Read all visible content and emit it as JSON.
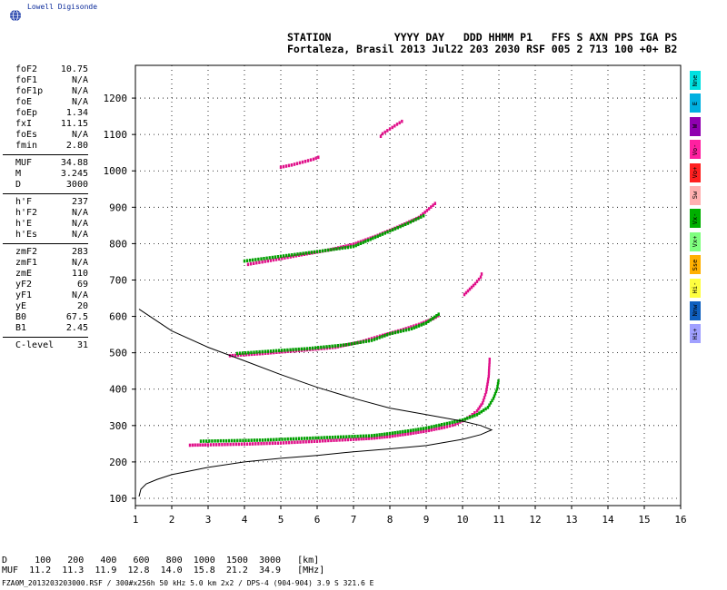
{
  "logo_text": "Lowell Digisonde",
  "header": {
    "line1": "STATION          YYYY DAY   DDD HHMM P1   FFS S AXN PPS IGA PS",
    "line2": "Fortaleza, Brasil 2013 Jul22 203 2030 RSF 005 2 713 100 +0+ B2"
  },
  "params": [
    [
      {
        "name": "foF2",
        "value": "10.75"
      },
      {
        "name": "foF1",
        "value": "N/A"
      },
      {
        "name": "foF1p",
        "value": "N/A"
      },
      {
        "name": "foE",
        "value": "N/A"
      },
      {
        "name": "foEp",
        "value": "1.34"
      },
      {
        "name": "fxI",
        "value": "11.15"
      },
      {
        "name": "foEs",
        "value": "N/A"
      },
      {
        "name": "fmin",
        "value": "2.80"
      }
    ],
    [
      {
        "name": "MUF",
        "value": "34.88"
      },
      {
        "name": "M",
        "value": "3.245"
      },
      {
        "name": "D",
        "value": "3000"
      }
    ],
    [
      {
        "name": "h'F",
        "value": "237"
      },
      {
        "name": "h'F2",
        "value": "N/A"
      },
      {
        "name": "h'E",
        "value": "N/A"
      },
      {
        "name": "h'Es",
        "value": "N/A"
      }
    ],
    [
      {
        "name": "zmF2",
        "value": "283"
      },
      {
        "name": "zmF1",
        "value": "N/A"
      },
      {
        "name": "zmE",
        "value": "110"
      },
      {
        "name": "yF2",
        "value": "69"
      },
      {
        "name": "yF1",
        "value": "N/A"
      },
      {
        "name": "yE",
        "value": "20"
      },
      {
        "name": "B0",
        "value": "67.5"
      },
      {
        "name": "B1",
        "value": "2.45"
      }
    ],
    [
      {
        "name": "C-level",
        "value": "31"
      }
    ]
  ],
  "legend": [
    {
      "label": "Nne",
      "color": "#00e0e0"
    },
    {
      "label": "E",
      "color": "#00b0e0"
    },
    {
      "label": "W",
      "color": "#9000b0"
    },
    {
      "label": "Vo-",
      "color": "#ff20a0"
    },
    {
      "label": "Vo+",
      "color": "#ff2020"
    },
    {
      "label": "Sw",
      "color": "#ffb0b0"
    },
    {
      "label": "Vx-",
      "color": "#00b000"
    },
    {
      "label": "Vx+",
      "color": "#80ff80"
    },
    {
      "label": "Sse",
      "color": "#ffb000"
    },
    {
      "label": "Hi-",
      "color": "#ffff40"
    },
    {
      "label": "Nnw",
      "color": "#1060c0"
    },
    {
      "label": "Hi+",
      "color": "#a0a0ff"
    }
  ],
  "footer": {
    "d_line": "D     100   200   400   600   800  1000  1500  3000   [km]",
    "muf_line": "MUF  11.2  11.3  11.9  12.8  14.0  15.8  21.2  34.9   [MHz]",
    "file_line": "FZA0M_2013203203000.RSF / 300#x256h 50 kHz 5.0 km 2x2 / DPS-4 (904-904)   3.9 S 321.6 E"
  },
  "chart_data": {
    "type": "scatter",
    "xlim": [
      1,
      16
    ],
    "ylim": [
      80,
      1290
    ],
    "xticks": [
      "1",
      "2",
      "3",
      "4",
      "5",
      "6",
      "7",
      "8",
      "9",
      "10",
      "11",
      "12",
      "13",
      "14",
      "15",
      "16"
    ],
    "yticks": [
      "100",
      "200",
      "300",
      "400",
      "500",
      "600",
      "700",
      "800",
      "900",
      "1000",
      "1100",
      "1200"
    ],
    "grid": true,
    "profile_curve": [
      [
        1.1,
        105
      ],
      [
        1.15,
        125
      ],
      [
        1.3,
        140
      ],
      [
        1.6,
        152
      ],
      [
        2.0,
        165
      ],
      [
        3.0,
        185
      ],
      [
        4.0,
        200
      ],
      [
        5.0,
        210
      ],
      [
        6.0,
        218
      ],
      [
        7.0,
        228
      ],
      [
        8.0,
        236
      ],
      [
        9.0,
        245
      ],
      [
        10.0,
        262
      ],
      [
        10.5,
        275
      ],
      [
        10.8,
        288
      ],
      [
        10.5,
        300
      ],
      [
        10.0,
        312
      ],
      [
        9.0,
        330
      ],
      [
        8.0,
        348
      ],
      [
        7.0,
        375
      ],
      [
        6.0,
        405
      ],
      [
        5.0,
        440
      ],
      [
        4.0,
        478
      ],
      [
        3.0,
        515
      ],
      [
        2.0,
        560
      ],
      [
        1.4,
        600
      ],
      [
        1.1,
        620
      ]
    ],
    "traces": [
      {
        "name": "O",
        "color": "#e0108a",
        "x": [
          2.5,
          3.0,
          4.0,
          5.0,
          6.0,
          7.0,
          7.5,
          8.0,
          8.5,
          9.0,
          9.5,
          9.8,
          10.0,
          10.2,
          10.4,
          10.55,
          10.65,
          10.72,
          10.75
        ],
        "y": [
          246,
          247,
          249,
          252,
          257,
          262,
          265,
          270,
          277,
          285,
          295,
          303,
          313,
          325,
          340,
          362,
          392,
          435,
          490
        ]
      },
      {
        "name": "X",
        "color": "#00a000",
        "x": [
          2.8,
          3.5,
          4.5,
          5.5,
          6.5,
          7.5,
          8.0,
          8.5,
          9.0,
          9.5,
          10.0,
          10.4,
          10.7,
          10.85,
          10.95,
          11.0
        ],
        "y": [
          257,
          258,
          260,
          264,
          268,
          272,
          278,
          285,
          293,
          304,
          315,
          330,
          350,
          375,
          400,
          430
        ]
      },
      {
        "name": "2O",
        "color": "#e0108a",
        "x": [
          3.6,
          4.5,
          5.5,
          6.5,
          7.2,
          7.8,
          8.3,
          8.8,
          9.2,
          9.4
        ],
        "y": [
          492,
          498,
          506,
          515,
          530,
          548,
          562,
          578,
          594,
          606
        ]
      },
      {
        "name": "2X",
        "color": "#00a000",
        "x": [
          3.8,
          4.8,
          5.8,
          6.8,
          7.5,
          8.0,
          8.6,
          9.0,
          9.4
        ],
        "y": [
          498,
          505,
          512,
          522,
          534,
          552,
          566,
          582,
          610
        ]
      },
      {
        "name": "3O",
        "color": "#e0108a",
        "x": [
          4.1,
          4.8,
          5.5,
          6.3,
          7.0,
          7.6,
          8.2,
          8.8,
          9.3
        ],
        "y": [
          743,
          755,
          768,
          782,
          798,
          820,
          845,
          872,
          915
        ]
      },
      {
        "name": "3X",
        "color": "#00a000",
        "x": [
          4.0,
          5.0,
          6.0,
          7.0,
          7.8,
          8.5,
          9.0
        ],
        "y": [
          752,
          765,
          778,
          792,
          826,
          856,
          880
        ]
      },
      {
        "name": "3 far",
        "color": "#e0108a",
        "x": [
          10.05,
          10.2,
          10.35,
          10.5,
          10.55
        ],
        "y": [
          660,
          675,
          690,
          708,
          725
        ]
      },
      {
        "name": "4",
        "color": "#e0108a",
        "x": [
          5.0,
          5.3,
          5.6,
          5.9,
          6.1
        ],
        "y": [
          1010,
          1016,
          1024,
          1032,
          1040
        ]
      },
      {
        "name": "5",
        "color": "#e0108a",
        "x": [
          7.75,
          7.8,
          8.2,
          8.4
        ],
        "y": [
          1095,
          1102,
          1128,
          1140
        ]
      }
    ]
  }
}
